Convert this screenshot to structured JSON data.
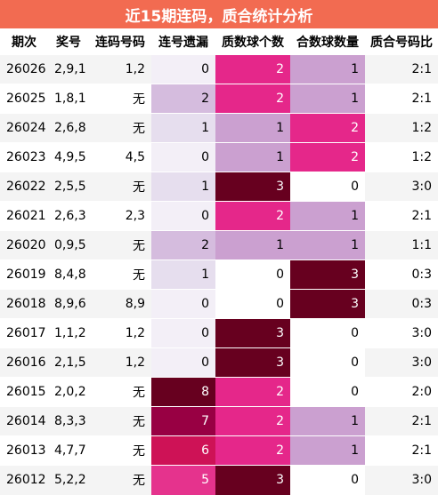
{
  "title": "近15期连码，质合统计分析",
  "columns": [
    "期次",
    "奖号",
    "连码号码",
    "连号遗漏",
    "质数球个数",
    "合数球数量",
    "质合号码比"
  ],
  "rows": [
    {
      "issue": "26026",
      "numbers": "2,9,1",
      "consecutive": "1,2",
      "miss": "0",
      "prime": "2",
      "composite": "1",
      "ratio": "2:1"
    },
    {
      "issue": "26025",
      "numbers": "1,8,1",
      "consecutive": "无",
      "miss": "2",
      "prime": "2",
      "composite": "1",
      "ratio": "2:1"
    },
    {
      "issue": "26024",
      "numbers": "2,6,8",
      "consecutive": "无",
      "miss": "1",
      "prime": "1",
      "composite": "2",
      "ratio": "1:2"
    },
    {
      "issue": "26023",
      "numbers": "4,9,5",
      "consecutive": "4,5",
      "miss": "0",
      "prime": "1",
      "composite": "2",
      "ratio": "1:2"
    },
    {
      "issue": "26022",
      "numbers": "2,5,5",
      "consecutive": "无",
      "miss": "1",
      "prime": "3",
      "composite": "0",
      "ratio": "3:0"
    },
    {
      "issue": "26021",
      "numbers": "2,6,3",
      "consecutive": "2,3",
      "miss": "0",
      "prime": "2",
      "composite": "1",
      "ratio": "2:1"
    },
    {
      "issue": "26020",
      "numbers": "0,9,5",
      "consecutive": "无",
      "miss": "2",
      "prime": "1",
      "composite": "1",
      "ratio": "1:1"
    },
    {
      "issue": "26019",
      "numbers": "8,4,8",
      "consecutive": "无",
      "miss": "1",
      "prime": "0",
      "composite": "3",
      "ratio": "0:3"
    },
    {
      "issue": "26018",
      "numbers": "8,9,6",
      "consecutive": "8,9",
      "miss": "0",
      "prime": "0",
      "composite": "3",
      "ratio": "0:3"
    },
    {
      "issue": "26017",
      "numbers": "1,1,2",
      "consecutive": "1,2",
      "miss": "0",
      "prime": "3",
      "composite": "0",
      "ratio": "3:0"
    },
    {
      "issue": "26016",
      "numbers": "2,1,5",
      "consecutive": "1,2",
      "miss": "0",
      "prime": "3",
      "composite": "0",
      "ratio": "3:0"
    },
    {
      "issue": "26015",
      "numbers": "2,0,2",
      "consecutive": "无",
      "miss": "8",
      "prime": "2",
      "composite": "0",
      "ratio": "2:0"
    },
    {
      "issue": "26014",
      "numbers": "8,3,3",
      "consecutive": "无",
      "miss": "7",
      "prime": "2",
      "composite": "1",
      "ratio": "2:1"
    },
    {
      "issue": "26013",
      "numbers": "4,7,7",
      "consecutive": "无",
      "miss": "6",
      "prime": "2",
      "composite": "1",
      "ratio": "2:1"
    },
    {
      "issue": "26012",
      "numbers": "5,2,2",
      "consecutive": "无",
      "miss": "5",
      "prime": "3",
      "composite": "0",
      "ratio": "3:0"
    }
  ],
  "colors": {
    "title_bg": "#f26b51",
    "miss": {
      "0": "#f3eff7",
      "1": "#e6deee",
      "2": "#d5bcde",
      "5": "#e5338d",
      "6": "#ce1256",
      "7": "#980043",
      "8": "#67001f"
    },
    "prime": {
      "0": "#ffffff",
      "1": "#cba0d0",
      "2": "#e5278a",
      "3": "#67001f"
    },
    "composite": {
      "0": "#ffffff",
      "1": "#cba0d0",
      "2": "#e5278a",
      "3": "#67001f"
    }
  }
}
